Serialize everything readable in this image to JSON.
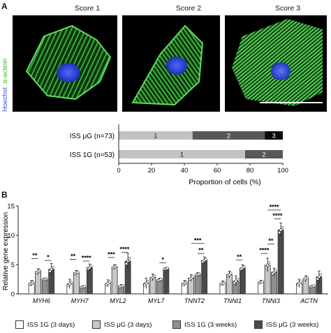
{
  "panelA": {
    "letter": "A",
    "stain": {
      "nucleus": "Hoechst",
      "marker": "α-actinin",
      "nucleus_color": "#3d5cff",
      "marker_color": "#4fd64f"
    },
    "scores": [
      "Score 1",
      "Score 2",
      "Score 3"
    ]
  },
  "panelB": {
    "letter": "B"
  },
  "chart_data": [
    {
      "type": "bar",
      "orientation": "horizontal",
      "stacked": true,
      "categories": [
        "ISS μG (n=73)",
        "ISS 1G (n=53)"
      ],
      "series": [
        {
          "name": "1",
          "values": [
            45,
            77
          ],
          "color": "#c2c2c2"
        },
        {
          "name": "2",
          "values": [
            44,
            23
          ],
          "color": "#585858"
        },
        {
          "name": "3",
          "values": [
            11,
            0
          ],
          "color": "#0a0a0a"
        }
      ],
      "xlabel": "Proportion of cells (%)",
      "xlim": [
        0,
        100
      ],
      "xticks": [
        "0",
        "20",
        "40",
        "60",
        "80",
        "100"
      ]
    },
    {
      "type": "bar",
      "categories": [
        "MYH6",
        "MYH7",
        "MYL2",
        "MYL7",
        "TNNT2",
        "TNNI1",
        "TNNI3",
        "ACTN"
      ],
      "series": [
        {
          "name": "ISS 1G (3 days)",
          "values": [
            1.8,
            1.7,
            1.8,
            1.8,
            1.8,
            1.8,
            2.0,
            1.8
          ],
          "color": "#ffffff"
        },
        {
          "name": "ISS μG (3 days)",
          "values": [
            3.8,
            3.6,
            4.6,
            2.8,
            2.7,
            3.3,
            4.9,
            2.6
          ],
          "color": "#c8c8c8"
        },
        {
          "name": "ISS 1G (3 weeks)",
          "values": [
            2.5,
            1.2,
            1.3,
            2.4,
            3.3,
            2.2,
            3.7,
            1.3
          ],
          "color": "#8f8f8f"
        },
        {
          "name": "ISS μG (3 weeks)",
          "values": [
            4.2,
            4.5,
            5.6,
            4.3,
            5.7,
            4.4,
            10.9,
            2.9
          ],
          "color": "#4a4a4a"
        }
      ],
      "errors": [
        [
          0.5,
          0.8,
          0.6,
          0.9,
          0.5,
          0.4,
          0.3,
          0.7
        ],
        [
          0.5,
          0.4,
          0.4,
          0.6,
          0.6,
          0.6,
          1.2,
          0.5
        ],
        [
          0.2,
          0.2,
          0.3,
          0.3,
          0.3,
          0.9,
          0.7,
          0.2
        ],
        [
          1.0,
          0.6,
          1.3,
          0.2,
          0.6,
          0.6,
          1.2,
          1.0
        ]
      ],
      "ylabel": "Relative gene expression",
      "ylim": [
        0,
        15
      ],
      "yticks": [
        "0",
        "5",
        "10",
        "15"
      ],
      "significance": [
        {
          "gene": 0,
          "from": 0,
          "to": 1,
          "y": 6.0,
          "label": "**"
        },
        {
          "gene": 0,
          "from": 2,
          "to": 3,
          "y": 5.7,
          "label": "*"
        },
        {
          "gene": 1,
          "from": 0,
          "to": 1,
          "y": 5.9,
          "label": "**"
        },
        {
          "gene": 1,
          "from": 2,
          "to": 3,
          "y": 5.6,
          "label": "****"
        },
        {
          "gene": 2,
          "from": 0,
          "to": 1,
          "y": 6.2,
          "label": "***"
        },
        {
          "gene": 2,
          "from": 2,
          "to": 3,
          "y": 7.1,
          "label": "****"
        },
        {
          "gene": 3,
          "from": 2,
          "to": 3,
          "y": 5.3,
          "label": "*"
        },
        {
          "gene": 4,
          "from": 2,
          "to": 3,
          "y": 6.9,
          "label": "**"
        },
        {
          "gene": 4,
          "from": 1,
          "to": 3,
          "y": 8.6,
          "label": "***"
        },
        {
          "gene": 5,
          "from": 2,
          "to": 3,
          "y": 5.8,
          "label": "**"
        },
        {
          "gene": 6,
          "from": 0,
          "to": 1,
          "y": 6.9,
          "label": "****"
        },
        {
          "gene": 6,
          "from": 1,
          "to": 2,
          "y": 8.5,
          "label": "**"
        },
        {
          "gene": 6,
          "from": 2,
          "to": 3,
          "y": 12.8,
          "label": "****"
        },
        {
          "gene": 6,
          "from": 1,
          "to": 3,
          "y": 14.3,
          "label": "****"
        }
      ]
    }
  ]
}
